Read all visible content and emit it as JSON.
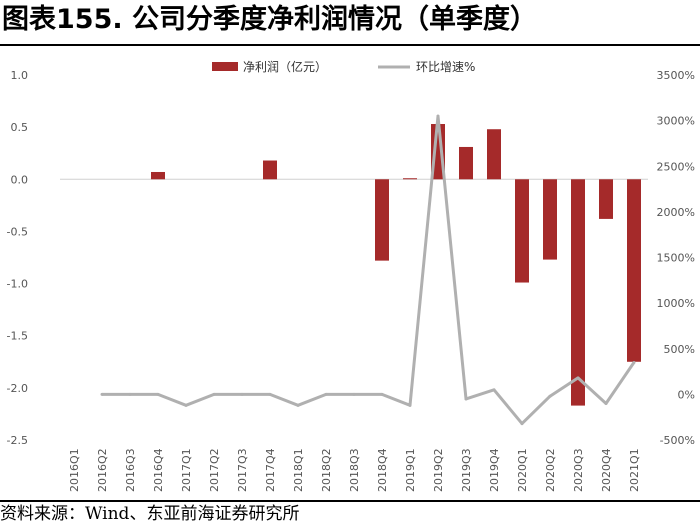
{
  "title": "图表155. 公司分季度净利润情况（单季度）",
  "source": "资料来源：Wind、东亚前海证券研究所",
  "chart_data": {
    "type": "bar",
    "categories": [
      "2016Q1",
      "2016Q2",
      "2016Q3",
      "2016Q4",
      "2017Q1",
      "2017Q2",
      "2017Q3",
      "2017Q4",
      "2018Q1",
      "2018Q2",
      "2018Q3",
      "2018Q4",
      "2019Q1",
      "2019Q2",
      "2019Q3",
      "2019Q4",
      "2020Q1",
      "2020Q2",
      "2020Q3",
      "2020Q4",
      "2021Q1"
    ],
    "legend_position": "top",
    "grid": false,
    "colors": {
      "bars": "#a52a2a",
      "line": "#b0b0b0"
    },
    "series": [
      {
        "name": "净利润（亿元）",
        "type": "bar",
        "axis": "left",
        "values": [
          null,
          null,
          null,
          0.07,
          null,
          null,
          null,
          0.18,
          null,
          null,
          null,
          -0.78,
          0.01,
          0.53,
          0.31,
          0.48,
          -0.99,
          -0.77,
          -2.17,
          -0.38,
          -1.75
        ]
      },
      {
        "name": "环比增速%",
        "type": "line",
        "axis": "right",
        "values": [
          null,
          0,
          0,
          0,
          -120,
          0,
          0,
          0,
          -120,
          0,
          0,
          0,
          -120,
          3050,
          -50,
          50,
          -320,
          -20,
          180,
          -100,
          350
        ]
      }
    ],
    "left_axis": {
      "ylim": [
        -2.5,
        1.0
      ],
      "ticks": [
        "1.0",
        "0.5",
        "0.0",
        "-0.5",
        "-1.0",
        "-1.5",
        "-2.0",
        "-2.5"
      ]
    },
    "right_axis": {
      "ylim": [
        -500,
        3500
      ],
      "ticks": [
        "3500%",
        "3000%",
        "2500%",
        "2000%",
        "1500%",
        "1000%",
        "500%",
        "0%",
        "-500%"
      ]
    },
    "x_tick_labels": [
      "2016Q1",
      "2016Q2",
      "2016Q3",
      "2016Q4",
      "2017Q1",
      "2017Q2",
      "2017Q3",
      "2017Q4",
      "2018Q1",
      "2018Q2",
      "2018Q3",
      "2018Q4",
      "2019Q1",
      "2019Q2",
      "2019Q3",
      "2019Q4",
      "2020Q1",
      "2020Q2",
      "2020Q3",
      "2020Q4",
      "2021Q1"
    ]
  }
}
